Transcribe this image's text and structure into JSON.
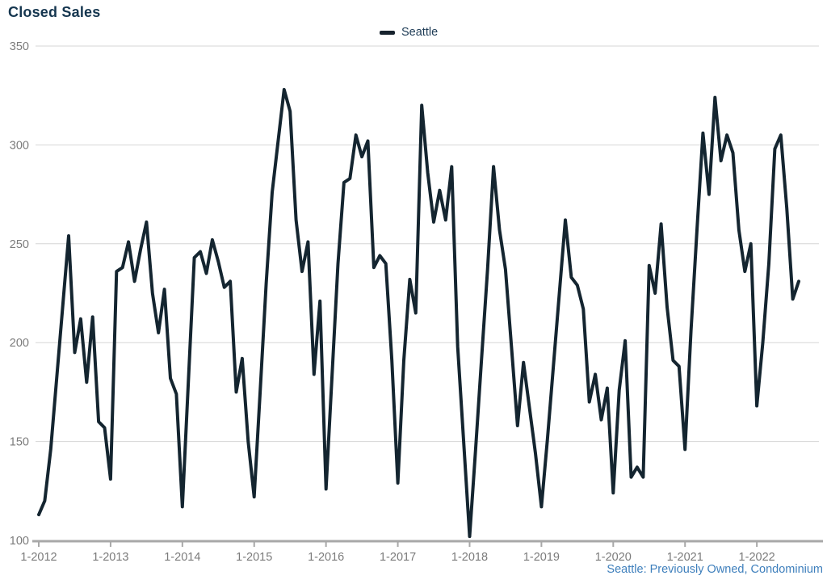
{
  "title": "Closed Sales",
  "legend": {
    "label": "Seattle"
  },
  "footer": "Seattle: Previously Owned, Condominium",
  "colors": {
    "line": "#142530",
    "title_text": "#15364f",
    "legend_text": "#1d3b55",
    "footer_text": "#3e7fbc",
    "gridline": "#d6d6d6",
    "axis": "#a8a8a8",
    "axis_label_text": "#7b7b7b"
  },
  "chart_data": {
    "type": "line",
    "title": "Closed Sales",
    "series": [
      {
        "name": "Seattle",
        "start": "1-2012",
        "end": "8-2022",
        "frequency": "monthly",
        "values": [
          113,
          120,
          146,
          182,
          218,
          254,
          195,
          212,
          180,
          213,
          160,
          157,
          131,
          236,
          238,
          251,
          231,
          247,
          261,
          225,
          205,
          227,
          182,
          174,
          117,
          180,
          243,
          246,
          235,
          252,
          241,
          228,
          231,
          175,
          192,
          150,
          122,
          175,
          230,
          276,
          302,
          328,
          317,
          262,
          236,
          251,
          184,
          221,
          126,
          183,
          240,
          281,
          283,
          305,
          294,
          302,
          238,
          244,
          240,
          191,
          129,
          191,
          232,
          215,
          320,
          286,
          261,
          277,
          262,
          289,
          198,
          150,
          102,
          146,
          192,
          237,
          289,
          257,
          237,
          198,
          158,
          190,
          167,
          144,
          117,
          151,
          188,
          225,
          262,
          233,
          229,
          217,
          170,
          184,
          161,
          177,
          124,
          176,
          201,
          132,
          137,
          132,
          239,
          225,
          260,
          218,
          191,
          188,
          146,
          206,
          257,
          306,
          275,
          324,
          292,
          305,
          296,
          257,
          236,
          250,
          168,
          200,
          240,
          298,
          305,
          268,
          222,
          231
        ]
      }
    ],
    "x_tick_labels": [
      "1-2012",
      "1-2013",
      "1-2014",
      "1-2015",
      "1-2016",
      "1-2017",
      "1-2018",
      "1-2019",
      "1-2020",
      "1-2021",
      "1-2022"
    ],
    "x_tick_every_n_points": 12,
    "y_ticks": [
      100,
      150,
      200,
      250,
      300,
      350
    ],
    "ylim": [
      100,
      350
    ],
    "grid": "horizontal",
    "legend_position": "top-center",
    "footnote": "Seattle: Previously Owned, Condominium"
  }
}
